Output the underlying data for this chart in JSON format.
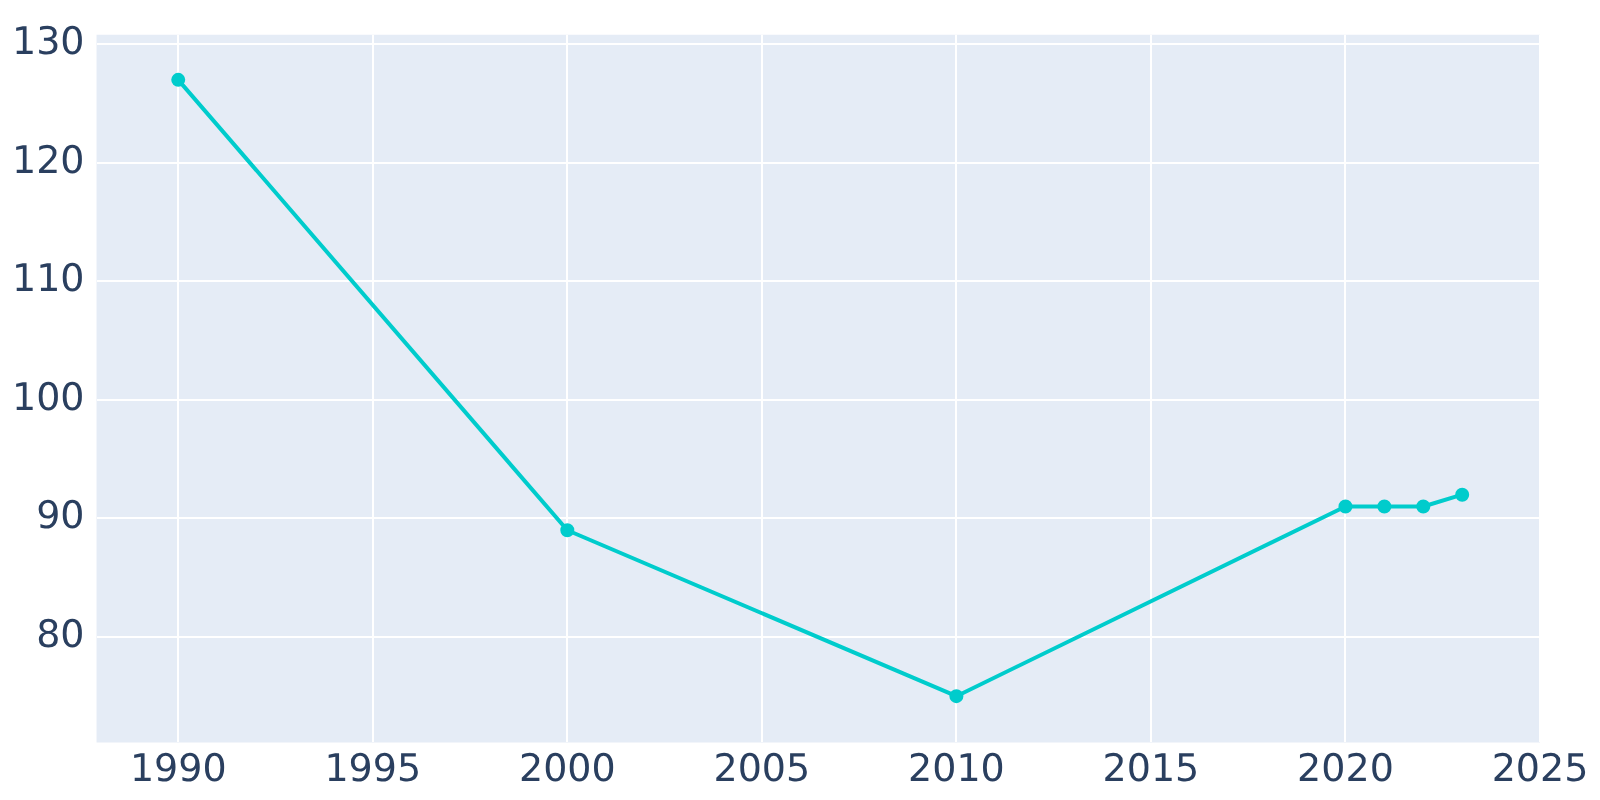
{
  "chart_data": {
    "type": "line",
    "x": [
      1990,
      2000,
      2010,
      2020,
      2021,
      2022,
      2023
    ],
    "series": [
      {
        "color": "#00cccc",
        "values": [
          127,
          89,
          75,
          91,
          91,
          91,
          92
        ]
      }
    ],
    "xlim": [
      1987.9,
      2025
    ],
    "xticks": [
      1990,
      1995,
      2000,
      2005,
      2010,
      2015,
      2020,
      2025
    ],
    "ylim": [
      71.1,
      130.8
    ],
    "yticks": [
      80,
      90,
      100,
      110,
      120,
      130
    ],
    "grid": true,
    "legend": false,
    "marker": "circle",
    "line_style": "solid"
  }
}
